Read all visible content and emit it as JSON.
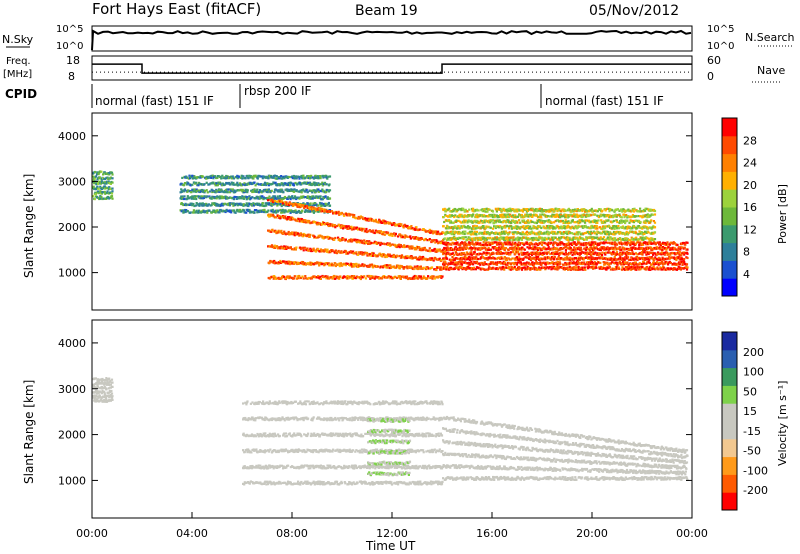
{
  "header": {
    "station": "Fort Hays East (fitACF)",
    "beam": "Beam 19",
    "date": "05/Nov/2012"
  },
  "noise_panel": {
    "left_label": "N.Sky",
    "right_label": "N.Search",
    "left_ticks": [
      "10^5",
      "10^0"
    ],
    "right_ticks": [
      "10^5",
      "10^0"
    ]
  },
  "freq_panel": {
    "left_label": "Freq.",
    "left_unit": "[MHz]",
    "right_label": "Nave",
    "left_ticks": [
      "18",
      "8"
    ],
    "right_ticks": [
      "60",
      "0"
    ],
    "freq_steps": [
      [
        0,
        15.0
      ],
      [
        2.0,
        9.7
      ],
      [
        14.0,
        15.0
      ],
      [
        24.0,
        15.0
      ]
    ],
    "nave_steps": [
      [
        0,
        17
      ],
      [
        6.0,
        17
      ],
      [
        14.0,
        17
      ],
      [
        18.0,
        17
      ],
      [
        24.0,
        17
      ]
    ]
  },
  "cpid": {
    "label": "CPID",
    "segments": [
      {
        "label": "normal (fast) 151 IF",
        "start": 0.0
      },
      {
        "label": "rbsp 200 IF",
        "start": 6.0
      },
      {
        "label": "normal (fast) 151 IF",
        "start": 18.0
      }
    ]
  },
  "colors": {
    "power": [
      "#0000ff",
      "#1a50d0",
      "#2d7f9a",
      "#3b9a6e",
      "#6db83a",
      "#9cd23c",
      "#ffb000",
      "#ff8000",
      "#ff4a00",
      "#ff0000"
    ],
    "velocity": [
      "#ff0000",
      "#ff5a00",
      "#ff9a1a",
      "#f2c890",
      "#c8c8c0",
      "#c8c8c0",
      "#7ed24a",
      "#3a9a5e",
      "#2a5fb0",
      "#1a2aa0"
    ]
  },
  "chart_data": [
    {
      "type": "heatmap",
      "name": "power",
      "ylabel": "Slant Range [km]",
      "xlim": [
        0,
        24
      ],
      "ylim": [
        180,
        4500
      ],
      "yticks": [
        "1000",
        "2000",
        "3000",
        "4000"
      ],
      "colorbar_label": "Power [dB]",
      "colorbar_ticks": [
        "4",
        "8",
        "12",
        "16",
        "20",
        "24",
        "28"
      ],
      "colorbar_range": [
        0,
        32
      ],
      "traces": [
        {
          "start": 0.0,
          "end": 0.8,
          "lo": 2700,
          "hi": 3350,
          "value": 12
        },
        {
          "start": 3.5,
          "end": 9.5,
          "lo": 2400,
          "hi": 3300,
          "value": 10
        },
        {
          "start": 7.0,
          "end": 14.0,
          "lo": 950,
          "hi": 3000,
          "value": 26
        },
        {
          "start": 14.0,
          "end": 23.8,
          "lo": 1150,
          "hi": 1800,
          "value": 28
        },
        {
          "start": 14.0,
          "end": 22.5,
          "lo": 1800,
          "hi": 2550,
          "value": 18
        }
      ]
    },
    {
      "type": "heatmap",
      "name": "velocity",
      "xlabel": "Time UT",
      "ylabel": "Slant Range [km]",
      "xlim": [
        0,
        24
      ],
      "ylim": [
        180,
        4500
      ],
      "xticks": [
        "00:00",
        "04:00",
        "08:00",
        "12:00",
        "16:00",
        "20:00",
        "00:00"
      ],
      "yticks": [
        "1000",
        "2000",
        "3000",
        "4000"
      ],
      "colorbar_label": "Velocity [m s⁻¹]",
      "colorbar_ticks": [
        "200",
        "100",
        "50",
        "15",
        "-15",
        "-50",
        "-100",
        "-200"
      ],
      "colorbar_range": [
        -250,
        250
      ],
      "traces": [
        {
          "start": 0.0,
          "end": 0.8,
          "lo": 2800,
          "hi": 3350,
          "value": 0
        },
        {
          "start": 6.0,
          "end": 14.0,
          "lo": 1000,
          "hi": 3100,
          "value": 0
        },
        {
          "start": 14.0,
          "end": 23.8,
          "lo": 1100,
          "hi": 2700,
          "value": 0
        },
        {
          "start": 11.0,
          "end": 12.7,
          "lo": 1200,
          "hi": 2600,
          "value": 50
        }
      ]
    }
  ]
}
